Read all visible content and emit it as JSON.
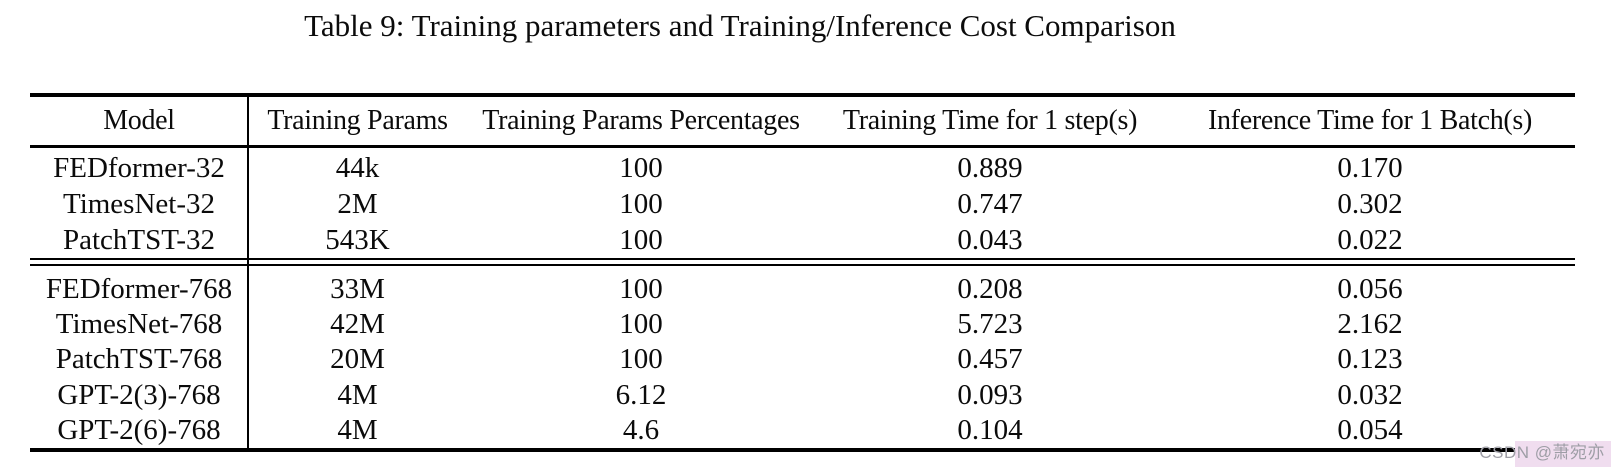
{
  "title": "Table 9: Training parameters and Training/Inference Cost Comparison",
  "table": {
    "columns": [
      "Model",
      "Training Params",
      "Training Params Percentages",
      "Training Time for 1 step(s)",
      "Inference Time for 1 Batch(s)"
    ],
    "groups": [
      {
        "rows": [
          [
            "FEDformer-32",
            "44k",
            "100",
            "0.889",
            "0.170"
          ],
          [
            "TimesNet-32",
            "2M",
            "100",
            "0.747",
            "0.302"
          ],
          [
            "PatchTST-32",
            "543K",
            "100",
            "0.043",
            "0.022"
          ]
        ]
      },
      {
        "rows": [
          [
            "FEDformer-768",
            "33M",
            "100",
            "0.208",
            "0.056"
          ],
          [
            "TimesNet-768",
            "42M",
            "100",
            "5.723",
            "2.162"
          ],
          [
            "PatchTST-768",
            "20M",
            "100",
            "0.457",
            "0.123"
          ],
          [
            "GPT-2(3)-768",
            "4M",
            "6.12",
            "0.093",
            "0.032"
          ],
          [
            "GPT-2(6)-768",
            "4M",
            "4.6",
            "0.104",
            "0.054"
          ]
        ]
      }
    ]
  },
  "watermark": {
    "text": "CSDN @萧宛亦",
    "text_color": "#9e9ea6",
    "bg_color": "#f0ddef"
  }
}
